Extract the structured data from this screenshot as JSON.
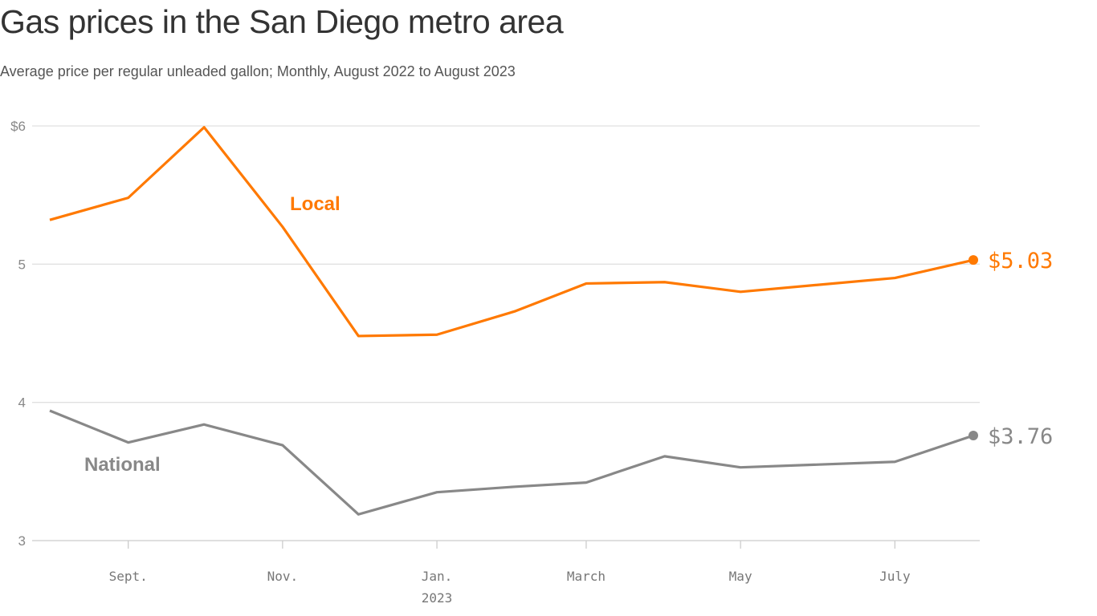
{
  "title": "Gas prices in the San Diego metro area",
  "subtitle": "Average price per regular unleaded gallon; Monthly, August 2022 to August 2023",
  "chart_data": {
    "type": "line",
    "title": "Gas prices in the San Diego metro area",
    "subtitle": "Average price per regular unleaded gallon; Monthly, August 2022 to August 2023",
    "x": [
      "2022-08-01",
      "2022-09-01",
      "2022-10-01",
      "2022-11-01",
      "2022-12-01",
      "2023-01-01",
      "2023-02-01",
      "2023-03-01",
      "2023-04-01",
      "2023-05-01",
      "2023-07-01",
      "2023-08-01"
    ],
    "series": [
      {
        "name": "Local",
        "color": "#ff7900",
        "values": [
          5.32,
          5.48,
          5.99,
          5.27,
          4.48,
          4.49,
          4.66,
          4.86,
          4.87,
          4.8,
          4.9,
          5.03
        ],
        "end_label": "$5.03"
      },
      {
        "name": "National",
        "color": "#888888",
        "values": [
          3.94,
          3.71,
          3.84,
          3.69,
          3.19,
          3.35,
          3.39,
          3.42,
          3.61,
          3.53,
          3.57,
          3.76
        ],
        "end_label": "$3.76"
      }
    ],
    "ylim": [
      3,
      6
    ],
    "yticks": [
      {
        "value": 6,
        "label": "$6"
      },
      {
        "value": 5,
        "label": "5"
      },
      {
        "value": 4,
        "label": "4"
      },
      {
        "value": 3,
        "label": "3"
      }
    ],
    "xticks": [
      {
        "date": "2022-09-01",
        "label": "Sept."
      },
      {
        "date": "2022-11-01",
        "label": "Nov."
      },
      {
        "date": "2023-01-01",
        "label": "Jan.",
        "sublabel": "2023"
      },
      {
        "date": "2023-03-01",
        "label": "March"
      },
      {
        "date": "2023-05-01",
        "label": "May"
      },
      {
        "date": "2023-07-01",
        "label": "July"
      }
    ],
    "grid": true,
    "xlabel": "",
    "ylabel": ""
  }
}
